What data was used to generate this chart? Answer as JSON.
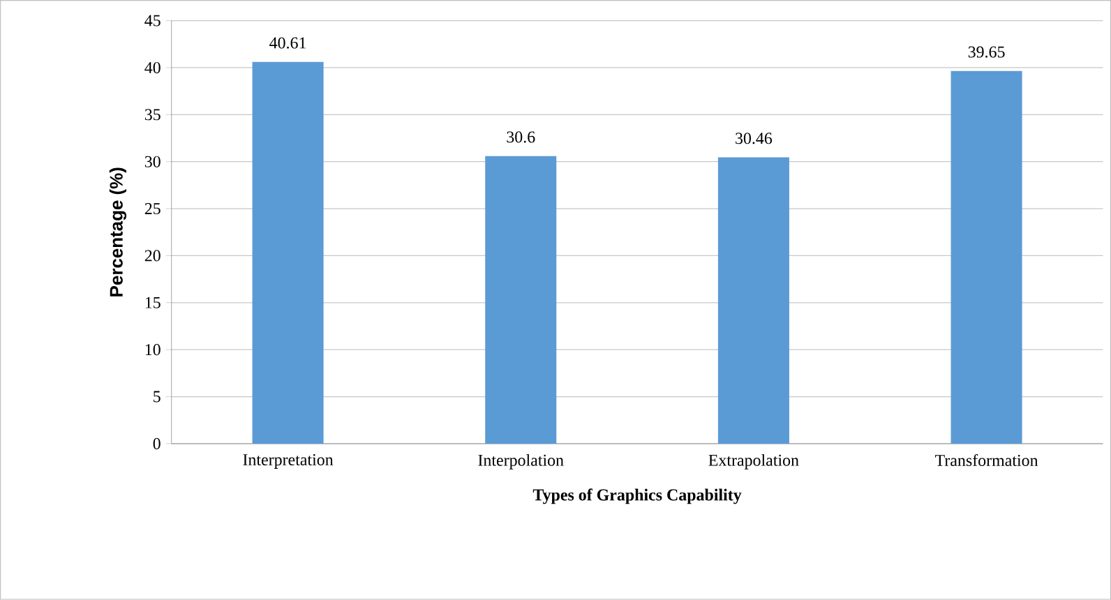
{
  "chart_data": {
    "type": "bar",
    "xlabel": "Types of Graphics Capability",
    "ylabel": "Percentage  (%)",
    "categories": [
      "Interpretation",
      "Interpolation",
      "Extrapolation",
      "Transformation"
    ],
    "values": [
      40.61,
      30.6,
      30.46,
      39.65
    ],
    "color": "#5b9bd5",
    "ylim": [
      0,
      45
    ],
    "yticks": [
      0,
      5,
      10,
      15,
      20,
      25,
      30,
      35,
      40,
      45
    ],
    "grid": "y",
    "data_labels": true
  }
}
